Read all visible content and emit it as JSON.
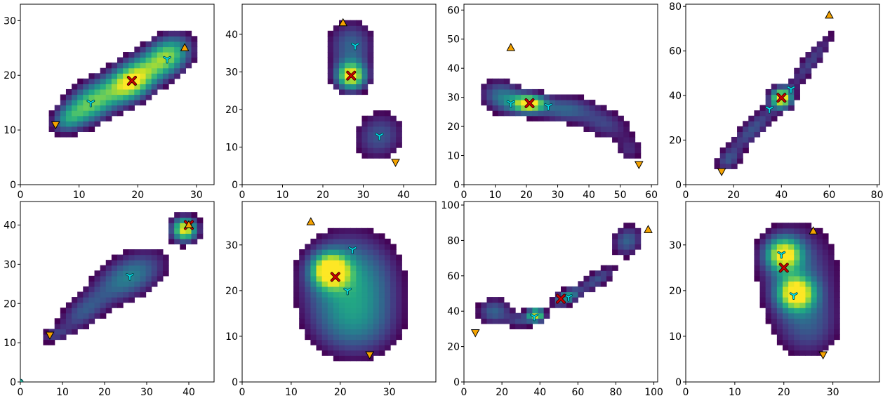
{
  "chart_data": [
    {
      "type": "heatmap",
      "xlim": [
        0,
        33
      ],
      "ylim": [
        0,
        33
      ],
      "xticks": [
        0,
        10,
        20,
        30
      ],
      "yticks": [
        0,
        10,
        20,
        30
      ],
      "blobs": [
        {
          "x": 12,
          "y": 15,
          "sx": 3.5,
          "sy": 2.2,
          "angle": 38,
          "w": 0.75
        },
        {
          "x": 19,
          "y": 19,
          "sx": 3.2,
          "sy": 2.2,
          "angle": 38,
          "w": 1.0
        },
        {
          "x": 25,
          "y": 23.5,
          "sx": 3.0,
          "sy": 2.2,
          "angle": 38,
          "w": 0.8
        },
        {
          "x": 8,
          "y": 12,
          "sx": 2.0,
          "sy": 1.5,
          "angle": 38,
          "w": 0.35
        }
      ],
      "threshold": 0.12,
      "markers": {
        "start": {
          "x": 28,
          "y": 25
        },
        "end": {
          "x": 6,
          "y": 11
        },
        "center": {
          "x": 19,
          "y": 19
        },
        "peaks": [
          {
            "x": 12,
            "y": 15
          },
          {
            "x": 25,
            "y": 23
          }
        ]
      }
    },
    {
      "type": "heatmap",
      "xlim": [
        0,
        48
      ],
      "ylim": [
        0,
        48
      ],
      "xticks": [
        0,
        10,
        20,
        30,
        40
      ],
      "yticks": [
        0,
        10,
        20,
        30,
        40
      ],
      "blobs": [
        {
          "x": 27,
          "y": 29,
          "sx": 2.5,
          "sy": 2.5,
          "angle": 0,
          "w": 1.0
        },
        {
          "x": 27,
          "y": 37,
          "sx": 3.8,
          "sy": 4.5,
          "angle": 0,
          "w": 0.35
        },
        {
          "x": 34,
          "y": 13,
          "sx": 4.0,
          "sy": 4.5,
          "angle": -30,
          "w": 0.3
        }
      ],
      "threshold": 0.1,
      "markers": {
        "start": {
          "x": 25,
          "y": 43
        },
        "end": {
          "x": 38,
          "y": 6
        },
        "center": {
          "x": 27,
          "y": 29
        },
        "peaks": [
          {
            "x": 28,
            "y": 37
          },
          {
            "x": 34,
            "y": 13
          }
        ]
      }
    },
    {
      "type": "heatmap",
      "xlim": [
        0,
        62
      ],
      "ylim": [
        0,
        62
      ],
      "xticks": [
        0,
        10,
        20,
        30,
        40,
        50,
        60
      ],
      "yticks": [
        0,
        10,
        20,
        30,
        40,
        50,
        60
      ],
      "blobs": [
        {
          "x": 21,
          "y": 28,
          "sx": 3.5,
          "sy": 2.0,
          "angle": 0,
          "w": 1.0
        },
        {
          "x": 13,
          "y": 30,
          "sx": 5.0,
          "sy": 3.5,
          "angle": -20,
          "w": 0.45
        },
        {
          "x": 32,
          "y": 26,
          "sx": 6.0,
          "sy": 3.0,
          "angle": 0,
          "w": 0.35
        },
        {
          "x": 45,
          "y": 21,
          "sx": 6.0,
          "sy": 3.5,
          "angle": -20,
          "w": 0.25
        },
        {
          "x": 53,
          "y": 12,
          "sx": 3.0,
          "sy": 3.0,
          "angle": 0,
          "w": 0.18
        }
      ],
      "threshold": 0.1,
      "markers": {
        "start": {
          "x": 15,
          "y": 47
        },
        "end": {
          "x": 56,
          "y": 7
        },
        "center": {
          "x": 21,
          "y": 28
        },
        "peaks": [
          {
            "x": 15,
            "y": 28
          },
          {
            "x": 27,
            "y": 27
          }
        ]
      }
    },
    {
      "type": "heatmap",
      "xlim": [
        0,
        81
      ],
      "ylim": [
        0,
        81
      ],
      "xticks": [
        0,
        20,
        40,
        60,
        80
      ],
      "yticks": [
        0,
        20,
        40,
        60,
        80
      ],
      "blobs": [
        {
          "x": 40,
          "y": 39,
          "sx": 3.0,
          "sy": 3.0,
          "angle": 0,
          "w": 1.0
        },
        {
          "x": 28,
          "y": 25,
          "sx": 10.0,
          "sy": 3.0,
          "angle": 48,
          "w": 0.3
        },
        {
          "x": 52,
          "y": 55,
          "sx": 12.0,
          "sy": 2.5,
          "angle": 55,
          "w": 0.25
        },
        {
          "x": 18,
          "y": 11,
          "sx": 4.0,
          "sy": 3.0,
          "angle": 45,
          "w": 0.25
        }
      ],
      "threshold": 0.1,
      "markers": {
        "start": {
          "x": 60,
          "y": 76
        },
        "end": {
          "x": 15,
          "y": 6
        },
        "center": {
          "x": 40,
          "y": 39
        },
        "peaks": [
          {
            "x": 35,
            "y": 34
          },
          {
            "x": 44,
            "y": 43
          }
        ]
      }
    },
    {
      "type": "heatmap",
      "xlim": [
        0,
        46
      ],
      "ylim": [
        0,
        46
      ],
      "xticks": [
        0,
        10,
        20,
        30,
        40
      ],
      "yticks": [
        0,
        10,
        20,
        30,
        40
      ],
      "blobs": [
        {
          "x": 39,
          "y": 39,
          "sx": 2.0,
          "sy": 2.0,
          "angle": 0,
          "w": 1.0
        },
        {
          "x": 26,
          "y": 27,
          "sx": 6.0,
          "sy": 3.5,
          "angle": 30,
          "w": 0.45
        },
        {
          "x": 15,
          "y": 18,
          "sx": 5.0,
          "sy": 2.5,
          "angle": 40,
          "w": 0.3
        },
        {
          "x": 8,
          "y": 12,
          "sx": 2.5,
          "sy": 1.2,
          "angle": 20,
          "w": 0.2
        }
      ],
      "threshold": 0.1,
      "markers": {
        "start": {
          "x": 40,
          "y": 40
        },
        "end": {
          "x": 7,
          "y": 12
        },
        "center": {
          "x": 40,
          "y": 40
        },
        "peaks": [
          {
            "x": 26,
            "y": 27
          }
        ],
        "origin": {
          "x": 0,
          "y": 0
        }
      }
    },
    {
      "type": "heatmap",
      "xlim": [
        0,
        39.5
      ],
      "ylim": [
        0,
        39.5
      ],
      "xticks": [
        0,
        10,
        20,
        30
      ],
      "yticks": [
        0,
        10,
        20,
        30
      ],
      "blobs": [
        {
          "x": 18,
          "y": 24.5,
          "sx": 2.5,
          "sy": 2.5,
          "angle": 0,
          "w": 1.0
        },
        {
          "x": 22,
          "y": 22,
          "sx": 6.5,
          "sy": 7.0,
          "angle": 0,
          "w": 0.55
        },
        {
          "x": 23,
          "y": 12,
          "sx": 6.0,
          "sy": 5.0,
          "angle": 0,
          "w": 0.3
        }
      ],
      "threshold": 0.12,
      "markers": {
        "start": {
          "x": 14,
          "y": 35
        },
        "end": {
          "x": 26,
          "y": 6
        },
        "center": {
          "x": 19,
          "y": 23
        },
        "peaks": [
          {
            "x": 22.5,
            "y": 29
          },
          {
            "x": 21.5,
            "y": 20
          }
        ]
      }
    },
    {
      "type": "heatmap",
      "xlim": [
        0,
        102
      ],
      "ylim": [
        0,
        102
      ],
      "xticks": [
        0,
        20,
        40,
        60,
        80,
        100
      ],
      "yticks": [
        0,
        20,
        40,
        60,
        80,
        100
      ],
      "blobs": [
        {
          "x": 38,
          "y": 38,
          "sx": 3.0,
          "sy": 2.5,
          "angle": 0,
          "w": 0.9
        },
        {
          "x": 54,
          "y": 48,
          "sx": 5.0,
          "sy": 2.5,
          "angle": 30,
          "w": 0.55
        },
        {
          "x": 16,
          "y": 40,
          "sx": 6.0,
          "sy": 5.0,
          "angle": 0,
          "w": 0.35
        },
        {
          "x": 70,
          "y": 58,
          "sx": 8.0,
          "sy": 3.0,
          "angle": 35,
          "w": 0.3
        },
        {
          "x": 86,
          "y": 80,
          "sx": 6.0,
          "sy": 5.0,
          "angle": 60,
          "w": 0.35
        },
        {
          "x": 30,
          "y": 35,
          "sx": 5.0,
          "sy": 3.0,
          "angle": 0,
          "w": 0.25
        }
      ],
      "threshold": 0.1,
      "markers": {
        "start": {
          "x": 97,
          "y": 86
        },
        "end": {
          "x": 6,
          "y": 28
        },
        "center": {
          "x": 51,
          "y": 47
        },
        "peaks": [
          {
            "x": 37,
            "y": 37
          },
          {
            "x": 55,
            "y": 48
          }
        ]
      }
    },
    {
      "type": "heatmap",
      "xlim": [
        0,
        39.5
      ],
      "ylim": [
        0,
        39.5
      ],
      "xticks": [
        0,
        10,
        20,
        30
      ],
      "yticks": [
        0,
        10,
        20,
        30
      ],
      "blobs": [
        {
          "x": 20,
          "y": 28,
          "sx": 2.5,
          "sy": 2.5,
          "angle": 0,
          "w": 0.9
        },
        {
          "x": 22.5,
          "y": 19.5,
          "sx": 2.5,
          "sy": 2.5,
          "angle": 0,
          "w": 0.95
        },
        {
          "x": 23,
          "y": 24,
          "sx": 6.0,
          "sy": 8.0,
          "angle": 0,
          "w": 0.3
        },
        {
          "x": 25,
          "y": 12,
          "sx": 4.5,
          "sy": 5.0,
          "angle": 0,
          "w": 0.25
        }
      ],
      "threshold": 0.12,
      "markers": {
        "start": {
          "x": 26,
          "y": 33
        },
        "end": {
          "x": 28,
          "y": 6
        },
        "center": {
          "x": 20,
          "y": 25
        },
        "peaks": [
          {
            "x": 19.5,
            "y": 28
          },
          {
            "x": 22,
            "y": 19
          }
        ]
      }
    }
  ],
  "colors": {
    "start_marker": "#f5a300",
    "end_marker": "#f5a300",
    "center_marker": "#cc0000",
    "peak_marker": "#00e5ee",
    "colormap": "viridis"
  },
  "icons": {
    "start": "triangle-up-icon",
    "end": "triangle-down-icon",
    "center": "x-icon",
    "peak": "tri-star-icon"
  }
}
